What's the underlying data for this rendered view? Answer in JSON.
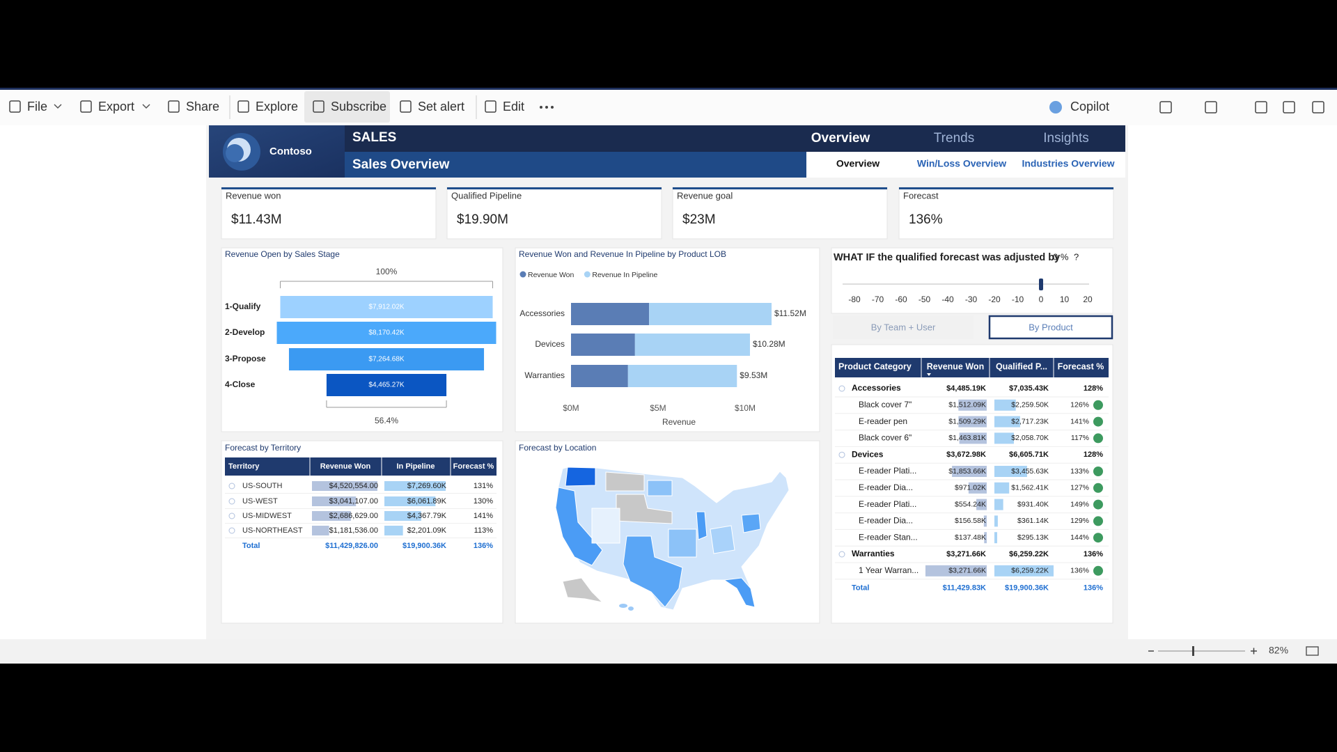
{
  "toolbar": {
    "items": [
      "File",
      "Export",
      "Share",
      "Explore",
      "Subscribe",
      "Set alert",
      "Edit"
    ],
    "copilot": "Copilot"
  },
  "header": {
    "brand": "Contoso",
    "section": "SALES",
    "page_title": "Sales Overview",
    "tabs": [
      "Overview",
      "Trends",
      "Insights"
    ],
    "subtabs": [
      "Overview",
      "Win/Loss Overview",
      "Industries Overview"
    ]
  },
  "kpis": [
    {
      "label": "Revenue won",
      "value": "$11.43M"
    },
    {
      "label": "Qualified Pipeline",
      "value": "$19.90M"
    },
    {
      "label": "Revenue goal",
      "value": "$23M"
    },
    {
      "label": "Forecast",
      "value": "136%"
    }
  ],
  "funnel": {
    "type": "funnel",
    "title": "Revenue Open by Sales Stage",
    "top_label": "100%",
    "bottom_label": "56.4%",
    "categories": [
      "1-Qualify",
      "2-Develop",
      "3-Propose",
      "4-Close"
    ],
    "values": [
      7912.02,
      8170.42,
      7264.68,
      4465.27
    ],
    "value_labels": [
      "$7,912.02K",
      "$8,170.42K",
      "$7,264.68K",
      "$4,465.27K"
    ],
    "colors": [
      "#9dd1ff",
      "#4ba9fb",
      "#3b9af2",
      "#0b56c2"
    ]
  },
  "product_lob": {
    "type": "bar",
    "title": "Revenue Won and Revenue In Pipeline by Product LOB",
    "categories": [
      "Accessories",
      "Devices",
      "Warranties"
    ],
    "series": [
      {
        "name": "Revenue Won",
        "color": "#5a7db5",
        "values": [
          4.485,
          3.673,
          3.272
        ]
      },
      {
        "name": "Revenue In Pipeline",
        "color": "#a8d3f5",
        "values": [
          7.035,
          6.606,
          6.259
        ]
      }
    ],
    "total_labels": [
      "$11.52M",
      "$10.28M",
      "$9.53M"
    ],
    "xlim": [
      0,
      12
    ],
    "xticks": [
      {
        "value": 0,
        "label": "$0M"
      },
      {
        "value": 5,
        "label": "$5M"
      },
      {
        "value": 10,
        "label": "$10M"
      }
    ],
    "xlabel": "Revenue",
    "legend": "top-left"
  },
  "what_if": {
    "title": "WHAT IF the qualified forecast was adjusted by",
    "value": 0,
    "value_label": "0 %",
    "suffix": "?",
    "ticks": [
      -80,
      -70,
      -60,
      -50,
      -40,
      -30,
      -20,
      -10,
      0,
      10,
      20
    ]
  },
  "view_buttons": [
    "By Team + User",
    "By Product"
  ],
  "territory_table": {
    "title": "Forecast by Territory",
    "columns": [
      "Territory",
      "Revenue Won",
      "In Pipeline",
      "Forecast %"
    ],
    "rows": [
      {
        "territory": "US-SOUTH",
        "revenue_won": 4520554,
        "revenue_won_label": "$4,520,554.00",
        "in_pipeline": 7269.6,
        "in_pipeline_label": "$7,269.60K",
        "forecast": "131%"
      },
      {
        "territory": "US-WEST",
        "revenue_won": 3041107,
        "revenue_won_label": "$3,041,107.00",
        "in_pipeline": 6061.89,
        "in_pipeline_label": "$6,061.89K",
        "forecast": "130%"
      },
      {
        "territory": "US-MIDWEST",
        "revenue_won": 2686629,
        "revenue_won_label": "$2,686,629.00",
        "in_pipeline": 4367.79,
        "in_pipeline_label": "$4,367.79K",
        "forecast": "141%"
      },
      {
        "territory": "US-NORTHEAST",
        "revenue_won": 1181536,
        "revenue_won_label": "$1,181,536.00",
        "in_pipeline": 2201.09,
        "in_pipeline_label": "$2,201.09K",
        "forecast": "113%"
      }
    ],
    "total": {
      "label": "Total",
      "revenue_won": "$11,429,826.00",
      "in_pipeline": "$19,900.36K",
      "forecast": "136%"
    }
  },
  "map": {
    "title": "Forecast by Location"
  },
  "product_table": {
    "columns": [
      "Product Category",
      "Revenue Won",
      "Qualified P...",
      "Forecast %"
    ],
    "groups": [
      {
        "name": "Accessories",
        "revenue_won": "$4,485.19K",
        "pipeline": "$7,035.43K",
        "forecast": "128%",
        "items": [
          {
            "name": "Black cover 7\"",
            "revenue_won": 1512.09,
            "revenue_won_label": "$1,512.09K",
            "pipeline": 2259.5,
            "pipeline_label": "$2,259.50K",
            "forecast": "126%"
          },
          {
            "name": "E-reader pen",
            "revenue_won": 1509.29,
            "revenue_won_label": "$1,509.29K",
            "pipeline": 2717.23,
            "pipeline_label": "$2,717.23K",
            "forecast": "141%"
          },
          {
            "name": "Black cover 6\"",
            "revenue_won": 1463.81,
            "revenue_won_label": "$1,463.81K",
            "pipeline": 2058.7,
            "pipeline_label": "$2,058.70K",
            "forecast": "117%"
          }
        ]
      },
      {
        "name": "Devices",
        "revenue_won": "$3,672.98K",
        "pipeline": "$6,605.71K",
        "forecast": "128%",
        "items": [
          {
            "name": "E-reader Plati...",
            "revenue_won": 1853.66,
            "revenue_won_label": "$1,853.66K",
            "pipeline": 3455.63,
            "pipeline_label": "$3,455.63K",
            "forecast": "133%"
          },
          {
            "name": "E-reader Dia...",
            "revenue_won": 971.02,
            "revenue_won_label": "$971.02K",
            "pipeline": 1562.41,
            "pipeline_label": "$1,562.41K",
            "forecast": "127%"
          },
          {
            "name": "E-reader Plati...",
            "revenue_won": 554.24,
            "revenue_won_label": "$554.24K",
            "pipeline": 931.4,
            "pipeline_label": "$931.40K",
            "forecast": "149%"
          },
          {
            "name": "E-reader Dia...",
            "revenue_won": 156.58,
            "revenue_won_label": "$156.58K",
            "pipeline": 361.14,
            "pipeline_label": "$361.14K",
            "forecast": "129%"
          },
          {
            "name": "E-reader Stan...",
            "revenue_won": 137.48,
            "revenue_won_label": "$137.48K",
            "pipeline": 295.13,
            "pipeline_label": "$295.13K",
            "forecast": "144%"
          }
        ]
      },
      {
        "name": "Warranties",
        "revenue_won": "$3,271.66K",
        "pipeline": "$6,259.22K",
        "forecast": "136%",
        "items": [
          {
            "name": "1 Year Warran...",
            "revenue_won": 3271.66,
            "revenue_won_label": "$3,271.66K",
            "pipeline": 6259.22,
            "pipeline_label": "$6,259.22K",
            "forecast": "136%"
          }
        ]
      }
    ],
    "total": {
      "label": "Total",
      "revenue_won": "$11,429.83K",
      "pipeline": "$19,900.36K",
      "forecast": "136%"
    }
  },
  "zoom": "82%"
}
